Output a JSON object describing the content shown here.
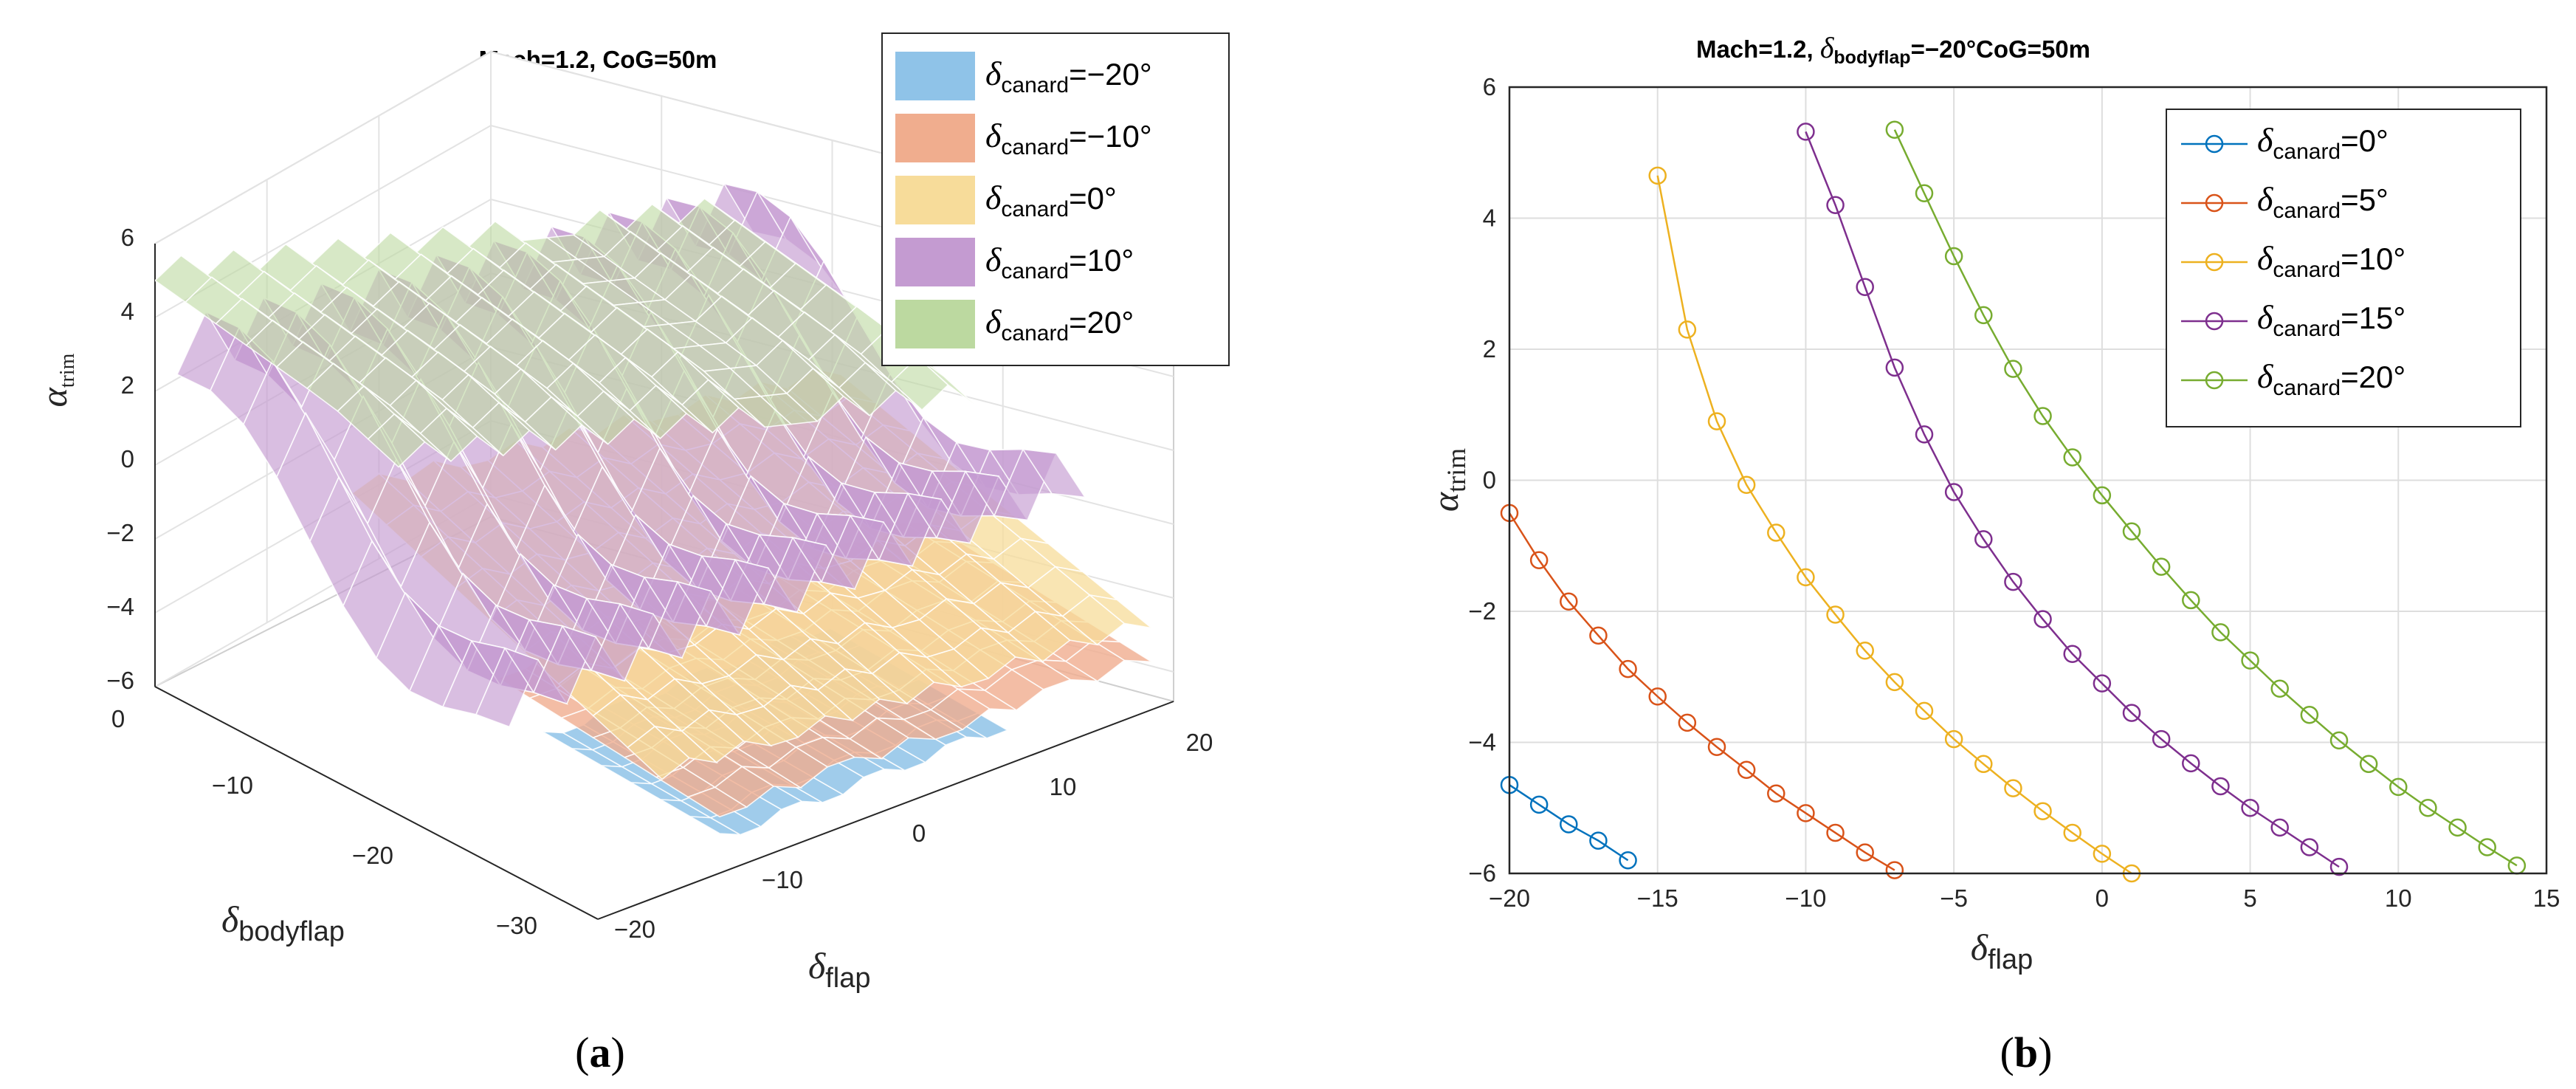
{
  "panel_labels": {
    "a": "(a)",
    "b": "(b)"
  },
  "chart_data": [
    {
      "type": "surface",
      "panel": "a",
      "title": "Mach=1.2, CoG=50m",
      "xlabel": {
        "symbol": "δ",
        "sub": "flap"
      },
      "ylabel": {
        "symbol": "δ",
        "sub": "bodyflap"
      },
      "zlabel": {
        "symbol": "α",
        "sub": "trim"
      },
      "x_ticks": [
        "−20",
        "−10",
        "0",
        "10",
        "20"
      ],
      "y_ticks": [
        "0",
        "−10",
        "−20",
        "−30"
      ],
      "z_ticks": [
        "6",
        "4",
        "2",
        "0",
        "−2",
        "−4",
        "−6"
      ],
      "xlim": [
        -20,
        20
      ],
      "ylim": [
        -30,
        0
      ],
      "zlim": [
        -6,
        6
      ],
      "legend_position": "top-right",
      "series": [
        {
          "name_symbol": "δ",
          "name_sub": "canard",
          "name_value": "=−20°",
          "color": "#8fc3e8"
        },
        {
          "name_symbol": "δ",
          "name_sub": "canard",
          "name_value": "=−10°",
          "color": "#f0ad8e"
        },
        {
          "name_symbol": "δ",
          "name_sub": "canard",
          "name_value": "=0°",
          "color": "#f7dc9a"
        },
        {
          "name_symbol": "δ",
          "name_sub": "canard",
          "name_value": "=10°",
          "color": "#c49bd1"
        },
        {
          "name_symbol": "δ",
          "name_sub": "canard",
          "name_value": "=20°",
          "color": "#bcd9a0"
        }
      ]
    },
    {
      "type": "line",
      "panel": "b",
      "title_prefix": "Mach=1.2, ",
      "title_symbol": "δ",
      "title_sub": "bodyflap",
      "title_suffix": "=−20°CoG=50m",
      "xlabel": {
        "symbol": "δ",
        "sub": "flap"
      },
      "ylabel": {
        "symbol": "α",
        "sub": "trim"
      },
      "xlim": [
        -20,
        15
      ],
      "ylim": [
        -6,
        6
      ],
      "x_ticks": [
        -20,
        -15,
        -10,
        -5,
        0,
        5,
        10,
        15
      ],
      "x_tick_labels": [
        "−20",
        "−15",
        "−10",
        "−5",
        "0",
        "5",
        "10",
        "15"
      ],
      "y_ticks": [
        -6,
        -4,
        -2,
        0,
        2,
        4,
        6
      ],
      "y_tick_labels": [
        "−6",
        "−4",
        "−2",
        "0",
        "2",
        "4",
        "6"
      ],
      "grid": true,
      "legend_position": "top-right",
      "series": [
        {
          "name_symbol": "δ",
          "name_sub": "canard",
          "name_value": "=0°",
          "color": "#0072bd",
          "x": [
            -20,
            -19,
            -18,
            -17,
            -16
          ],
          "y": [
            -4.65,
            -4.95,
            -5.25,
            -5.5,
            -5.8
          ]
        },
        {
          "name_symbol": "δ",
          "name_sub": "canard",
          "name_value": "=5°",
          "color": "#d95319",
          "x": [
            -20,
            -19,
            -18,
            -17,
            -16,
            -15,
            -14,
            -13,
            -12,
            -11,
            -10,
            -9,
            -8,
            -7
          ],
          "y": [
            -0.5,
            -1.22,
            -1.85,
            -2.37,
            -2.88,
            -3.3,
            -3.7,
            -4.07,
            -4.42,
            -4.78,
            -5.08,
            -5.38,
            -5.68,
            -5.95
          ]
        },
        {
          "name_symbol": "δ",
          "name_sub": "canard",
          "name_value": "=10°",
          "color": "#edb120",
          "x": [
            -15,
            -14,
            -13,
            -12,
            -11,
            -10,
            -9,
            -8,
            -7,
            -6,
            -5,
            -4,
            -3,
            -2,
            -1,
            0,
            1
          ],
          "y": [
            4.65,
            2.3,
            0.9,
            -0.07,
            -0.8,
            -1.48,
            -2.05,
            -2.6,
            -3.08,
            -3.52,
            -3.95,
            -4.33,
            -4.7,
            -5.05,
            -5.38,
            -5.7,
            -6.0
          ]
        },
        {
          "name_symbol": "δ",
          "name_sub": "canard",
          "name_value": "=15°",
          "color": "#7e2f8e",
          "x": [
            -10,
            -9,
            -8,
            -7,
            -6,
            -5,
            -4,
            -3,
            -2,
            -1,
            0,
            1,
            2,
            3,
            4,
            5,
            6,
            7,
            8
          ],
          "y": [
            5.32,
            4.2,
            2.95,
            1.72,
            0.7,
            -0.18,
            -0.9,
            -1.55,
            -2.12,
            -2.65,
            -3.1,
            -3.55,
            -3.95,
            -4.32,
            -4.67,
            -5.0,
            -5.3,
            -5.6,
            -5.9
          ]
        },
        {
          "name_symbol": "δ",
          "name_sub": "canard",
          "name_value": "=20°",
          "color": "#77ac30",
          "x": [
            -7,
            -6,
            -5,
            -4,
            -3,
            -2,
            -1,
            0,
            1,
            2,
            3,
            4,
            5,
            6,
            7,
            8,
            9,
            10,
            11,
            12,
            13,
            14
          ],
          "y": [
            5.35,
            4.38,
            3.42,
            2.52,
            1.7,
            0.98,
            0.35,
            -0.23,
            -0.78,
            -1.32,
            -1.83,
            -2.32,
            -2.75,
            -3.18,
            -3.58,
            -3.97,
            -4.33,
            -4.68,
            -5.0,
            -5.3,
            -5.6,
            -5.88
          ]
        }
      ]
    }
  ]
}
